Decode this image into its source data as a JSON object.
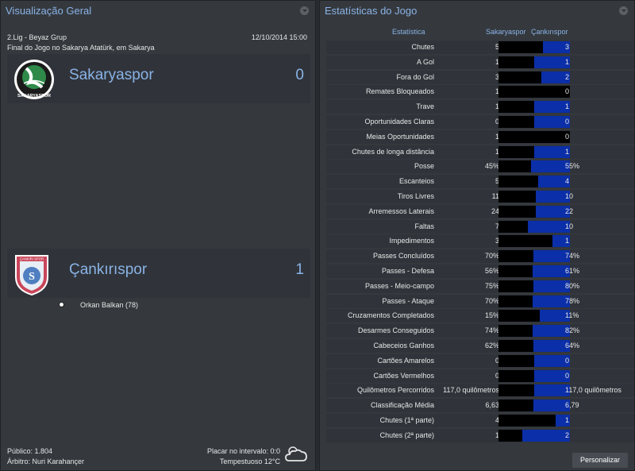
{
  "left": {
    "title": "Visualização Geral",
    "competition": "2.Lig - Beyaz Grup",
    "datetime": "12/10/2014 15:00",
    "venue": "Final do Jogo no Sakarya Atatürk, em Sakarya",
    "home": {
      "name": "Sakaryaspor",
      "score": "0",
      "crest_text": "SAKARYASPOR"
    },
    "away": {
      "name": "Çankırıspor",
      "score": "1",
      "crest_text": "ÇANKIRI SPOR"
    },
    "scorer": "Orkan Balkan (78)",
    "attendance": "Público: 1.804",
    "referee": "Árbitro: Nuri Karahançer",
    "halftime": "Placar no intervalo: 0:0",
    "weather": "Tempestuoso 12°C"
  },
  "right": {
    "title": "Estatísticas do Jogo",
    "col_stat": "Estatística",
    "col_home": "Sakaryaspor",
    "col_away": "Çankırıspor",
    "customize": "Personalizar",
    "colors": {
      "home_bar": "#000000",
      "away_bar": "#0b2fa8"
    },
    "stats": [
      {
        "label": "Chutes",
        "home": "5",
        "away": "3",
        "away_share": 0.375
      },
      {
        "label": "A Gol",
        "home": "1",
        "away": "1",
        "away_share": 0.5
      },
      {
        "label": "Fora do Gol",
        "home": "3",
        "away": "2",
        "away_share": 0.4
      },
      {
        "label": "Remates Bloqueados",
        "home": "1",
        "away": "0",
        "away_share": 0
      },
      {
        "label": "Trave",
        "home": "1",
        "away": "1",
        "away_share": 0.5
      },
      {
        "label": "Oportunidades Claras",
        "home": "0",
        "away": "0",
        "away_share": 0.5
      },
      {
        "label": "Meias Oportunidades",
        "home": "1",
        "away": "0",
        "away_share": 0
      },
      {
        "label": "Chutes de longa distância",
        "home": "1",
        "away": "1",
        "away_share": 0.5
      },
      {
        "label": "Posse",
        "home": "45%",
        "away": "55%",
        "away_share": 0.55
      },
      {
        "label": "Escanteios",
        "home": "5",
        "away": "4",
        "away_share": 0.444
      },
      {
        "label": "Tiros Livres",
        "home": "11",
        "away": "10",
        "away_share": 0.476
      },
      {
        "label": "Arremessos Laterais",
        "home": "24",
        "away": "22",
        "away_share": 0.478
      },
      {
        "label": "Faltas",
        "home": "7",
        "away": "10",
        "away_share": 0.588
      },
      {
        "label": "Impedimentos",
        "home": "3",
        "away": "1",
        "away_share": 0.25
      },
      {
        "label": "Passes Concluídos",
        "home": "70%",
        "away": "74%",
        "away_share": 0.514
      },
      {
        "label": "Passes - Defesa",
        "home": "56%",
        "away": "61%",
        "away_share": 0.521
      },
      {
        "label": "Passes - Meio-campo",
        "home": "75%",
        "away": "80%",
        "away_share": 0.516
      },
      {
        "label": "Passes - Ataque",
        "home": "70%",
        "away": "78%",
        "away_share": 0.527
      },
      {
        "label": "Cruzamentos Completados",
        "home": "15%",
        "away": "11%",
        "away_share": 0.423
      },
      {
        "label": "Desarmes Conseguidos",
        "home": "74%",
        "away": "82%",
        "away_share": 0.526
      },
      {
        "label": "Cabeceios Ganhos",
        "home": "62%",
        "away": "64%",
        "away_share": 0.508
      },
      {
        "label": "Cartões Amarelos",
        "home": "0",
        "away": "0",
        "away_share": 0.5
      },
      {
        "label": "Cartões Vermelhos",
        "home": "0",
        "away": "0",
        "away_share": 0.5
      },
      {
        "label": "Quilômetros Percorridos",
        "home": "117,0 quilômetros",
        "away": "117,0 quilômetros",
        "away_share": 0.5
      },
      {
        "label": "Classificação Média",
        "home": "6,63",
        "away": "6,79",
        "away_share": 0.506
      },
      {
        "label": "Chutes (1ª parte)",
        "home": "4",
        "away": "1",
        "away_share": 0.2
      },
      {
        "label": "Chutes (2ª parte)",
        "home": "1",
        "away": "2",
        "away_share": 0.667
      }
    ]
  }
}
